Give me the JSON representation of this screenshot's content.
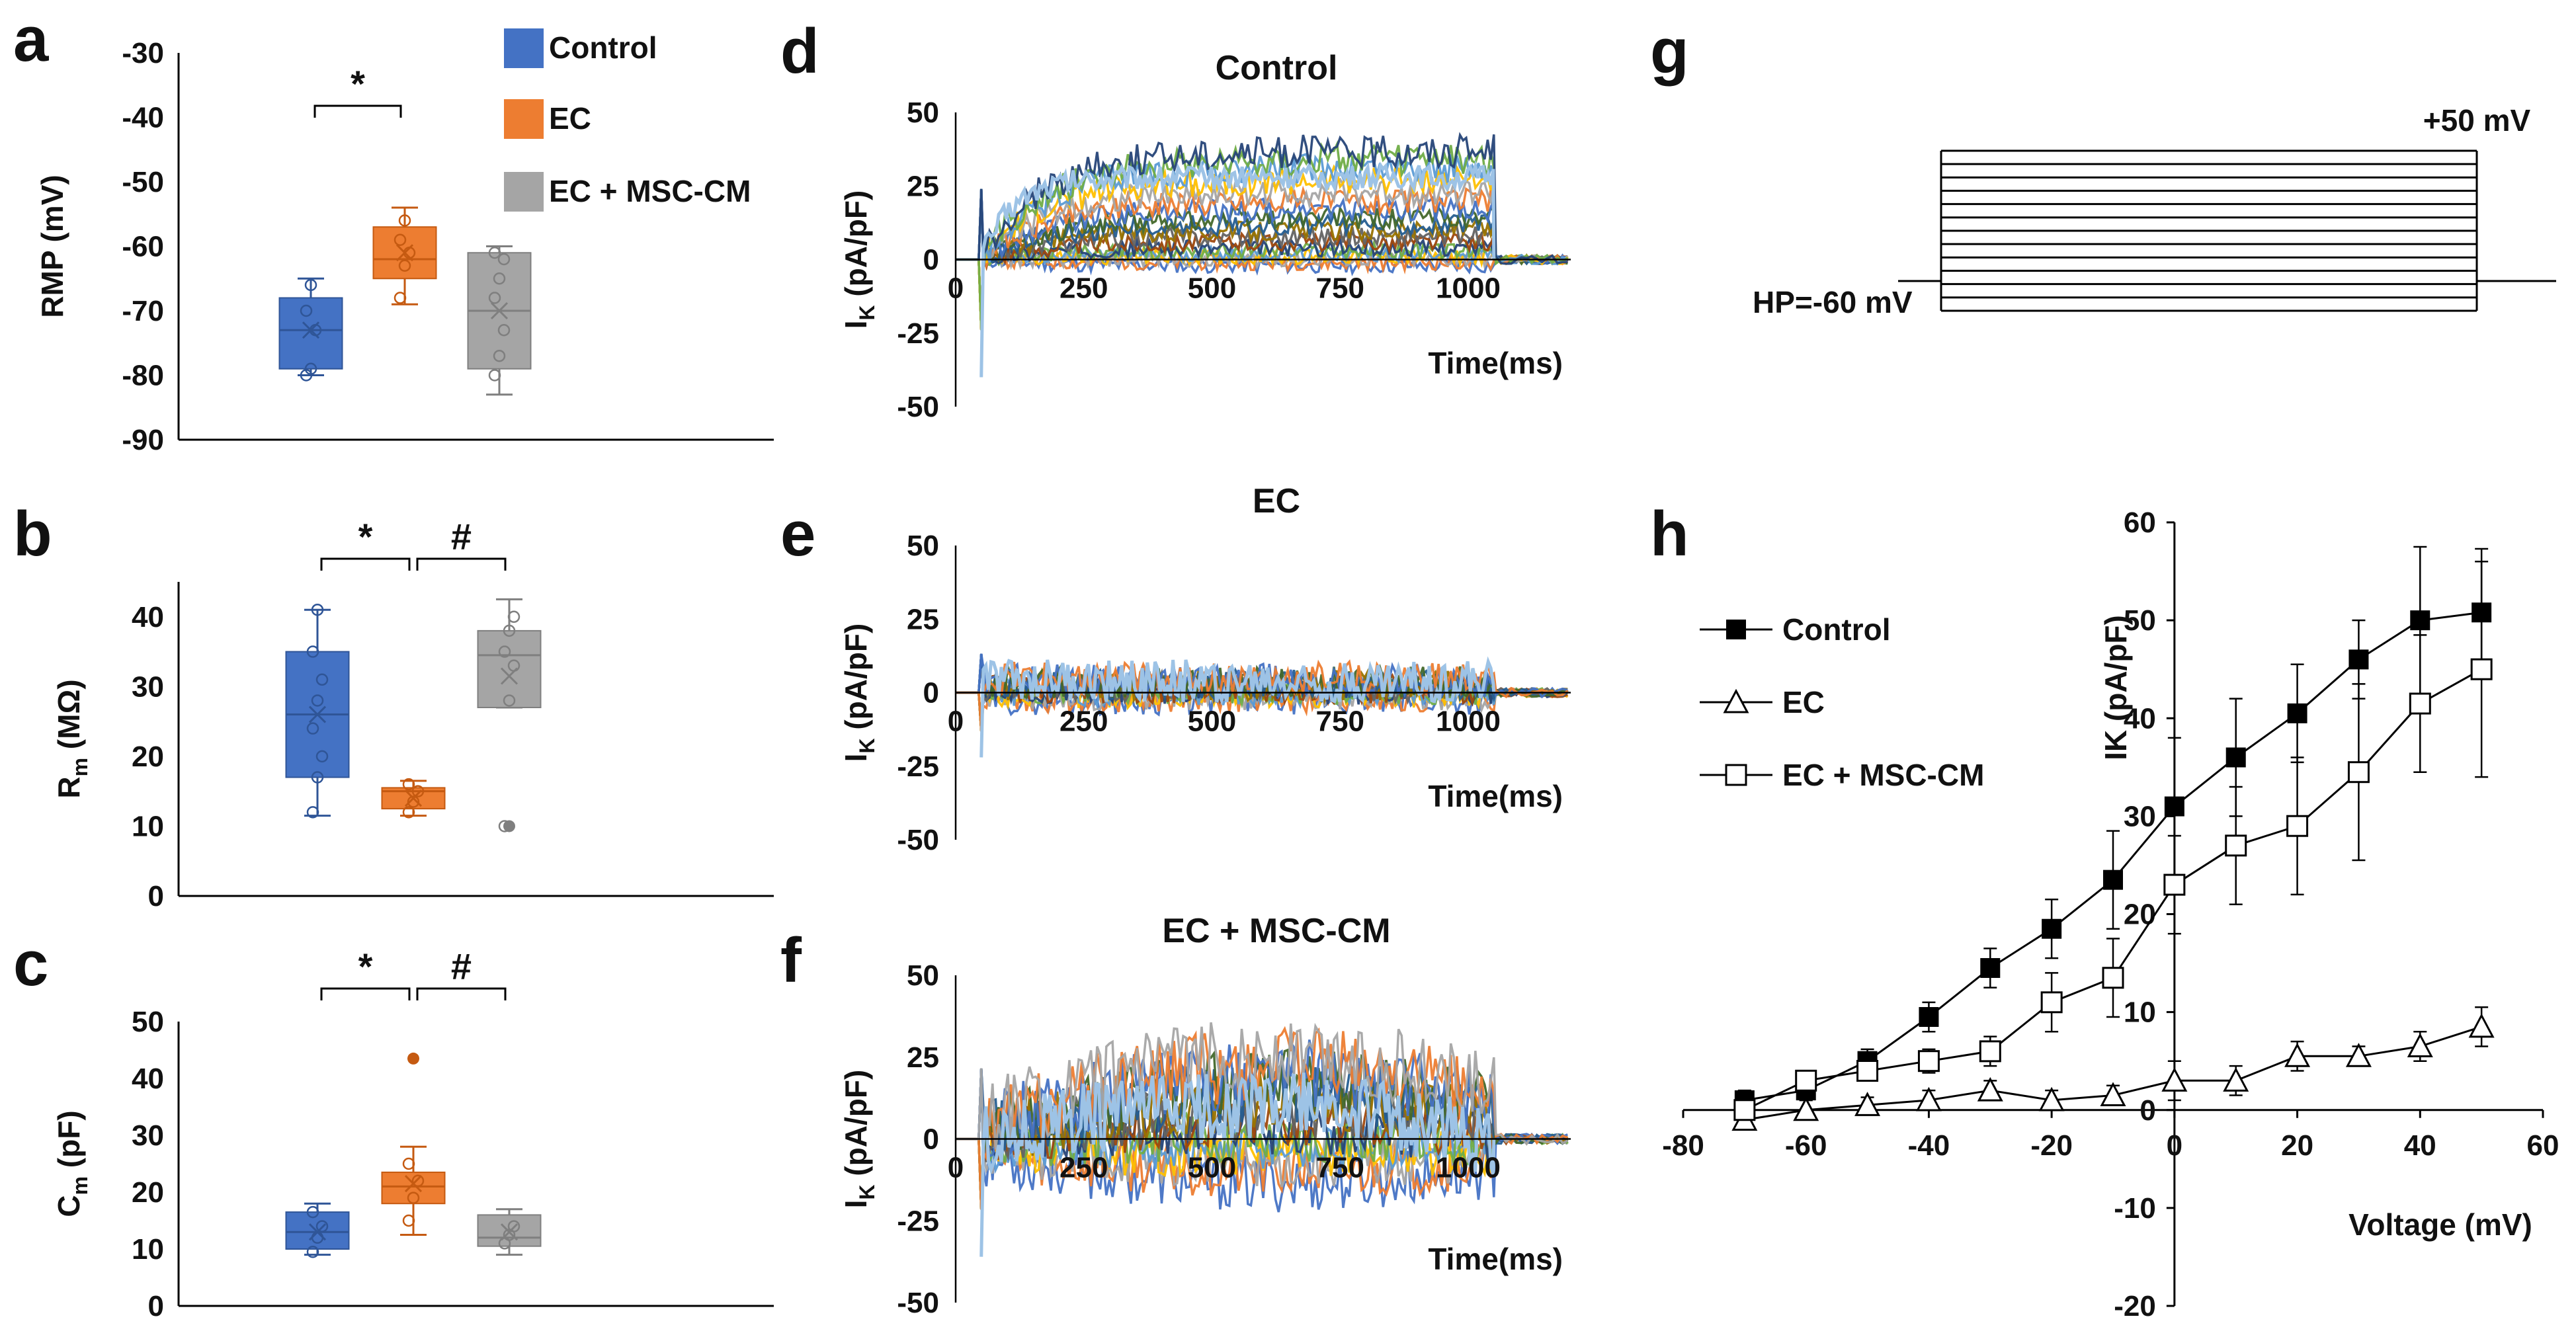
{
  "figure": {
    "panels": {
      "a": "a",
      "b": "b",
      "c": "c",
      "d": "d",
      "e": "e",
      "f": "f",
      "g": "g",
      "h": "h"
    }
  },
  "colors": {
    "control": "#4472C4",
    "ec": "#ED7D31",
    "ec_msc": "#A5A5A5",
    "axis": "#000000"
  },
  "chart_data": [
    {
      "id": "a",
      "type": "box",
      "title": "",
      "ylabel": "RMP (mV)",
      "ylim": [
        -90,
        -30
      ],
      "yticks": [
        -30,
        -40,
        -50,
        -60,
        -70,
        -80,
        -90
      ],
      "legend": [
        "Control",
        "EC",
        "EC + MSC-CM"
      ],
      "groups": [
        {
          "name": "Control",
          "min": -80,
          "q1": -79,
          "median": -73,
          "q3": -68,
          "max": -65,
          "mean": -73,
          "points": [
            -80,
            -79,
            -73,
            -70,
            -66
          ]
        },
        {
          "name": "EC",
          "min": -69,
          "q1": -65,
          "median": -62,
          "q3": -57,
          "max": -54,
          "mean": -61,
          "points": [
            -68,
            -63,
            -61,
            -59,
            -56
          ]
        },
        {
          "name": "EC + MSC-CM",
          "min": -83,
          "q1": -79,
          "median": -70,
          "q3": -61,
          "max": -60,
          "mean": -70,
          "points": [
            -80,
            -77,
            -73,
            -68,
            -65,
            -62,
            -61
          ]
        }
      ],
      "significance": [
        {
          "label": "*",
          "from": 0,
          "to": 1
        }
      ]
    },
    {
      "id": "b",
      "type": "box",
      "ylabel_main": "R",
      "ylabel_sub": "m",
      "ylabel_rest": " (MΩ)",
      "ylim": [
        0,
        45
      ],
      "yticks": [
        0,
        10,
        20,
        30,
        40
      ],
      "groups": [
        {
          "name": "Control",
          "min": 11.5,
          "q1": 17,
          "median": 26,
          "q3": 35,
          "max": 41,
          "mean": 26,
          "points": [
            12,
            17,
            20,
            24,
            28,
            31,
            35,
            41
          ]
        },
        {
          "name": "EC",
          "min": 11.5,
          "q1": 12.5,
          "median": 15,
          "q3": 15.5,
          "max": 16.5,
          "mean": 14,
          "points": [
            12,
            13.5,
            15,
            16
          ]
        },
        {
          "name": "EC + MSC-CM",
          "min": 27,
          "q1": 27,
          "median": 34.5,
          "q3": 38,
          "max": 42.5,
          "mean": 31.5,
          "points": [
            10,
            28,
            33,
            35,
            38,
            40
          ],
          "outliers": [
            10
          ]
        }
      ],
      "significance": [
        {
          "label": "*",
          "from": 0,
          "to": 1
        },
        {
          "label": "#",
          "from": 1,
          "to": 2
        }
      ]
    },
    {
      "id": "c",
      "type": "box",
      "ylabel_main": "C",
      "ylabel_sub": "m",
      "ylabel_rest": " (pF)",
      "ylim": [
        0,
        50
      ],
      "yticks": [
        0,
        10,
        20,
        30,
        40,
        50
      ],
      "groups": [
        {
          "name": "Control",
          "min": 9,
          "q1": 10,
          "median": 13,
          "q3": 16.5,
          "max": 18,
          "mean": 13,
          "points": [
            9.5,
            12,
            14,
            16.5
          ]
        },
        {
          "name": "EC",
          "min": 12.5,
          "q1": 18,
          "median": 21,
          "q3": 23.5,
          "max": 28,
          "mean": 21.5,
          "points": [
            15,
            19,
            22,
            25
          ],
          "outliers": [
            43.5
          ]
        },
        {
          "name": "EC + MSC-CM",
          "min": 9,
          "q1": 10.5,
          "median": 12,
          "q3": 16,
          "max": 17,
          "mean": 13,
          "points": [
            11,
            12.5,
            14
          ]
        }
      ],
      "significance": [
        {
          "label": "*",
          "from": 0,
          "to": 1
        },
        {
          "label": "#",
          "from": 1,
          "to": 2
        }
      ]
    },
    {
      "id": "d",
      "type": "line",
      "title": "Control",
      "ylabel_main": "I",
      "ylabel_sub": "K",
      "ylabel_rest": " (pA/pF)",
      "xlabel": "Time(ms)",
      "xlim": [
        0,
        1200
      ],
      "ylim": [
        -50,
        50
      ],
      "xticks": [
        0,
        250,
        500,
        750,
        1000
      ],
      "yticks": [
        50,
        25,
        0,
        -25,
        -50
      ],
      "pulse": [
        50,
        1050
      ],
      "steady_state": [
        -2,
        -1,
        0,
        1,
        2,
        3,
        4,
        6,
        8,
        10,
        12,
        14,
        17,
        20,
        23,
        27,
        31,
        34,
        37
      ]
    },
    {
      "id": "e",
      "type": "line",
      "title": "EC",
      "ylabel_main": "I",
      "ylabel_sub": "K",
      "ylabel_rest": " (pA/pF)",
      "xlabel": "Time(ms)",
      "xlim": [
        0,
        1200
      ],
      "ylim": [
        -50,
        50
      ],
      "xticks": [
        0,
        250,
        500,
        750,
        1000
      ],
      "yticks": [
        50,
        25,
        0,
        -25,
        -50
      ],
      "pulse": [
        50,
        1050
      ],
      "steady_state": [
        -4,
        -3,
        -2,
        -1,
        0,
        1,
        1,
        2,
        3,
        4,
        5,
        6,
        7,
        8
      ]
    },
    {
      "id": "f",
      "type": "line",
      "title": "EC + MSC-CM",
      "ylabel_main": "I",
      "ylabel_sub": "K",
      "ylabel_rest": " (pA/pF)",
      "xlabel": "Time(ms)",
      "xlim": [
        0,
        1200
      ],
      "ylim": [
        -50,
        50
      ],
      "xticks": [
        0,
        250,
        500,
        750,
        1000
      ],
      "yticks": [
        50,
        25,
        0,
        -25,
        -50
      ],
      "pulse": [
        50,
        1050
      ],
      "steady_state": [
        -8,
        -5,
        -3,
        -1,
        0,
        2,
        4,
        6,
        8,
        10,
        12,
        14,
        16,
        18,
        20
      ]
    },
    {
      "id": "g",
      "type": "protocol",
      "label_top": "+50 mV",
      "label_hold": "HP=-60 mV",
      "steps_mv": [
        -70,
        -60,
        -50,
        -40,
        -30,
        -20,
        -10,
        0,
        10,
        20,
        30,
        40,
        50
      ],
      "holding_mv": -60
    },
    {
      "id": "h",
      "type": "line",
      "xlabel": "Voltage (mV)",
      "ylabel": "IK (pA/pF)",
      "xlim": [
        -80,
        60
      ],
      "ylim": [
        -20,
        60
      ],
      "xticks": [
        -80,
        -60,
        -40,
        -20,
        0,
        20,
        40,
        60
      ],
      "yticks": [
        60,
        50,
        40,
        30,
        20,
        10,
        0,
        -10,
        -20
      ],
      "x": [
        -70,
        -60,
        -50,
        -40,
        -30,
        -20,
        -10,
        0,
        10,
        20,
        30,
        40,
        50
      ],
      "series": [
        {
          "name": "Control",
          "marker": "filled-square",
          "values": [
            1,
            2,
            5,
            9.5,
            14.5,
            18.5,
            23.5,
            31,
            36,
            40.5,
            46,
            50,
            50.8
          ],
          "errors": [
            1,
            1,
            1.2,
            1.5,
            2,
            3,
            5,
            7,
            6,
            5,
            4,
            7.5,
            6.5
          ]
        },
        {
          "name": "EC",
          "marker": "open-triangle",
          "values": [
            -1,
            0,
            0.5,
            1,
            2,
            1,
            1.5,
            3,
            3,
            5.5,
            5.5,
            6.5,
            8.5
          ],
          "errors": [
            1,
            1,
            0.8,
            1,
            1,
            1,
            1,
            2,
            1.5,
            1.5,
            1,
            1.5,
            2
          ]
        },
        {
          "name": "EC + MSC-CM",
          "marker": "open-square",
          "values": [
            0,
            3,
            4,
            5,
            6,
            11,
            13.5,
            23,
            27,
            29,
            34.5,
            41.5,
            45
          ],
          "errors": [
            1,
            1,
            1,
            1.2,
            1.5,
            3,
            4,
            5,
            6,
            7,
            9,
            7,
            11
          ]
        }
      ]
    }
  ]
}
